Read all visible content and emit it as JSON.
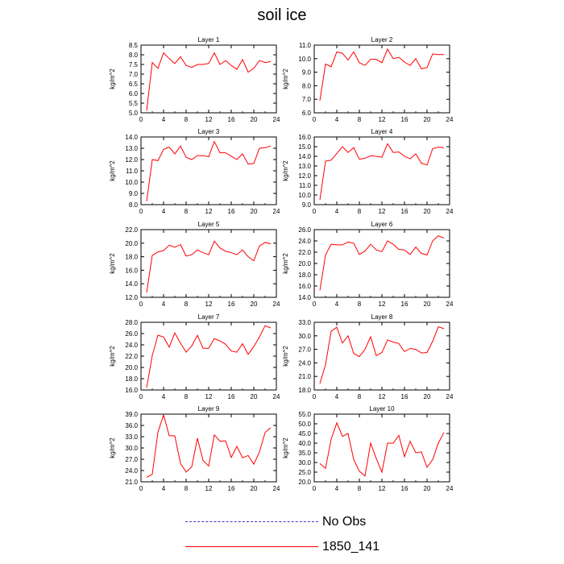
{
  "title": "soil ice",
  "legend": [
    {
      "label": "No Obs",
      "color": "#3a3acc",
      "dash": true
    },
    {
      "label": "1850_141",
      "color": "#ff0000",
      "dash": false
    }
  ],
  "chart_data": [
    {
      "type": "line",
      "title": "Layer 1",
      "ylabel": "kg/m^2",
      "xlim": [
        0,
        24
      ],
      "ylim": [
        5.0,
        8.5
      ],
      "xticks": [
        0,
        4,
        8,
        12,
        16,
        20,
        24
      ],
      "yticks": [
        5.0,
        5.5,
        6.0,
        6.5,
        7.0,
        7.5,
        8.0,
        8.5
      ],
      "series": [
        {
          "color": "#ff0000",
          "x": [
            1,
            2,
            3,
            4,
            5,
            6,
            7,
            8,
            9,
            10,
            11,
            12,
            13,
            14,
            15,
            16,
            17,
            18,
            19,
            20,
            21,
            22,
            23
          ],
          "values": [
            5.1,
            7.6,
            7.3,
            8.1,
            7.8,
            7.55,
            7.9,
            7.45,
            7.35,
            7.5,
            7.5,
            7.55,
            8.1,
            7.5,
            7.7,
            7.45,
            7.25,
            7.75,
            7.1,
            7.3,
            7.7,
            7.6,
            7.65
          ]
        }
      ]
    },
    {
      "type": "line",
      "title": "Layer 2",
      "ylabel": "kg/m^2",
      "xlim": [
        0,
        24
      ],
      "ylim": [
        6.0,
        11.0
      ],
      "xticks": [
        0,
        4,
        8,
        12,
        16,
        20,
        24
      ],
      "yticks": [
        6.0,
        7.0,
        8.0,
        9.0,
        10.0,
        11.0
      ],
      "series": [
        {
          "color": "#ff0000",
          "x": [
            1,
            2,
            3,
            4,
            5,
            6,
            7,
            8,
            9,
            10,
            11,
            12,
            13,
            14,
            15,
            16,
            17,
            18,
            19,
            20,
            21,
            22,
            23
          ],
          "values": [
            6.9,
            9.6,
            9.4,
            10.5,
            10.4,
            9.9,
            10.5,
            9.7,
            9.5,
            9.95,
            9.95,
            9.7,
            10.7,
            10.0,
            10.1,
            9.75,
            9.5,
            10.0,
            9.25,
            9.35,
            10.35,
            10.3,
            10.3
          ]
        }
      ]
    },
    {
      "type": "line",
      "title": "Layer 3",
      "ylabel": "kg/m^2",
      "xlim": [
        0,
        24
      ],
      "ylim": [
        8.0,
        14.0
      ],
      "xticks": [
        0,
        4,
        8,
        12,
        16,
        20,
        24
      ],
      "yticks": [
        8.0,
        9.0,
        10.0,
        11.0,
        12.0,
        13.0,
        14.0
      ],
      "series": [
        {
          "color": "#ff0000",
          "x": [
            1,
            2,
            3,
            4,
            5,
            6,
            7,
            8,
            9,
            10,
            11,
            12,
            13,
            14,
            15,
            16,
            17,
            18,
            19,
            20,
            21,
            22,
            23
          ],
          "values": [
            8.3,
            12.0,
            11.9,
            12.9,
            13.1,
            12.5,
            13.2,
            12.2,
            12.0,
            12.35,
            12.35,
            12.25,
            13.6,
            12.6,
            12.6,
            12.3,
            12.0,
            12.5,
            11.6,
            11.65,
            13.0,
            13.05,
            13.2
          ]
        }
      ]
    },
    {
      "type": "line",
      "title": "Layer 4",
      "ylabel": "kg/m^2",
      "xlim": [
        0,
        24
      ],
      "ylim": [
        9.0,
        16.0
      ],
      "xticks": [
        0,
        4,
        8,
        12,
        16,
        20,
        24
      ],
      "yticks": [
        9.0,
        10.0,
        11.0,
        12.0,
        13.0,
        14.0,
        15.0,
        16.0
      ],
      "series": [
        {
          "color": "#ff0000",
          "x": [
            1,
            2,
            3,
            4,
            5,
            6,
            7,
            8,
            9,
            10,
            11,
            12,
            13,
            14,
            15,
            16,
            17,
            18,
            19,
            20,
            21,
            22,
            23
          ],
          "values": [
            9.5,
            13.5,
            13.6,
            14.3,
            15.0,
            14.4,
            14.9,
            13.7,
            13.8,
            14.05,
            14.0,
            13.9,
            15.3,
            14.4,
            14.45,
            14.0,
            13.75,
            14.25,
            13.3,
            13.1,
            14.8,
            14.95,
            14.9
          ]
        }
      ]
    },
    {
      "type": "line",
      "title": "Layer 5",
      "ylabel": "kg/m^2",
      "xlim": [
        0,
        24
      ],
      "ylim": [
        12.0,
        22.0
      ],
      "xticks": [
        0,
        4,
        8,
        12,
        16,
        20,
        24
      ],
      "yticks": [
        12.0,
        14.0,
        16.0,
        18.0,
        20.0,
        22.0
      ],
      "series": [
        {
          "color": "#ff0000",
          "x": [
            1,
            2,
            3,
            4,
            5,
            6,
            7,
            8,
            9,
            10,
            11,
            12,
            13,
            14,
            15,
            16,
            17,
            18,
            19,
            20,
            21,
            22,
            23
          ],
          "values": [
            12.7,
            18.2,
            18.7,
            18.9,
            19.7,
            19.4,
            19.8,
            18.1,
            18.3,
            19.0,
            18.6,
            18.3,
            20.3,
            19.3,
            18.8,
            18.6,
            18.3,
            19.0,
            18.0,
            17.4,
            19.6,
            20.1,
            19.9
          ]
        }
      ]
    },
    {
      "type": "line",
      "title": "Layer 6",
      "ylabel": "kg/m^2",
      "xlim": [
        0,
        24
      ],
      "ylim": [
        14.0,
        26.0
      ],
      "xticks": [
        0,
        4,
        8,
        12,
        16,
        20,
        24
      ],
      "yticks": [
        14.0,
        16.0,
        18.0,
        20.0,
        22.0,
        24.0,
        26.0
      ],
      "series": [
        {
          "color": "#ff0000",
          "x": [
            1,
            2,
            3,
            4,
            5,
            6,
            7,
            8,
            9,
            10,
            11,
            12,
            13,
            14,
            15,
            16,
            17,
            18,
            19,
            20,
            21,
            22,
            23
          ],
          "values": [
            15.2,
            21.5,
            23.4,
            23.3,
            23.3,
            23.8,
            23.6,
            21.6,
            22.2,
            23.4,
            22.4,
            22.1,
            24.0,
            23.4,
            22.5,
            22.4,
            21.6,
            22.9,
            21.8,
            21.5,
            24.0,
            24.9,
            24.5
          ]
        }
      ]
    },
    {
      "type": "line",
      "title": "Layer 7",
      "ylabel": "kg/m^2",
      "xlim": [
        0,
        24
      ],
      "ylim": [
        16.0,
        28.0
      ],
      "xticks": [
        0,
        4,
        8,
        12,
        16,
        20,
        24
      ],
      "yticks": [
        16.0,
        18.0,
        20.0,
        22.0,
        24.0,
        26.0,
        28.0
      ],
      "series": [
        {
          "color": "#ff0000",
          "x": [
            1,
            2,
            3,
            4,
            5,
            6,
            7,
            8,
            9,
            10,
            11,
            12,
            13,
            14,
            15,
            16,
            17,
            18,
            19,
            20,
            21,
            22,
            23
          ],
          "values": [
            16.4,
            22.1,
            25.7,
            25.4,
            23.6,
            26.1,
            24.3,
            22.7,
            23.8,
            25.7,
            23.4,
            23.4,
            25.1,
            24.7,
            24.1,
            22.9,
            22.7,
            24.2,
            22.3,
            23.7,
            25.4,
            27.4,
            27.0
          ]
        }
      ]
    },
    {
      "type": "line",
      "title": "Layer 8",
      "ylabel": "kg/m^2",
      "xlim": [
        0,
        24
      ],
      "ylim": [
        18.0,
        33.0
      ],
      "xticks": [
        0,
        4,
        8,
        12,
        16,
        20,
        24
      ],
      "yticks": [
        18.0,
        21.0,
        24.0,
        27.0,
        30.0,
        33.0
      ],
      "series": [
        {
          "color": "#ff0000",
          "x": [
            1,
            2,
            3,
            4,
            5,
            6,
            7,
            8,
            9,
            10,
            11,
            12,
            13,
            14,
            15,
            16,
            17,
            18,
            19,
            20,
            21,
            22,
            23
          ],
          "values": [
            19.4,
            23.6,
            31.0,
            31.9,
            28.4,
            30.0,
            26.1,
            25.4,
            27.0,
            29.8,
            25.6,
            26.3,
            29.1,
            28.6,
            28.3,
            26.5,
            27.2,
            27.0,
            26.2,
            26.3,
            28.8,
            32.0,
            31.6
          ]
        }
      ]
    },
    {
      "type": "line",
      "title": "Layer 9",
      "ylabel": "kg/m^2",
      "xlim": [
        0,
        24
      ],
      "ylim": [
        21.0,
        39.0
      ],
      "xticks": [
        0,
        4,
        8,
        12,
        16,
        20,
        24
      ],
      "yticks": [
        21.0,
        24.0,
        27.0,
        30.0,
        33.0,
        36.0,
        39.0
      ],
      "series": [
        {
          "color": "#ff0000",
          "x": [
            1,
            2,
            3,
            4,
            5,
            6,
            7,
            8,
            9,
            10,
            11,
            12,
            13,
            14,
            15,
            16,
            17,
            18,
            19,
            20,
            21,
            22,
            23
          ],
          "values": [
            22.2,
            23.0,
            34.2,
            38.8,
            33.3,
            33.2,
            25.9,
            23.6,
            25.0,
            32.6,
            26.7,
            25.2,
            33.5,
            31.8,
            31.9,
            27.5,
            30.4,
            27.4,
            28.0,
            25.7,
            28.9,
            34.1,
            35.4
          ]
        }
      ]
    },
    {
      "type": "line",
      "title": "Layer 10",
      "ylabel": "kg/m^2",
      "xlim": [
        0,
        24
      ],
      "ylim": [
        20.0,
        55.0
      ],
      "xticks": [
        0,
        4,
        8,
        12,
        16,
        20,
        24
      ],
      "yticks": [
        20.0,
        25.0,
        30.0,
        35.0,
        40.0,
        45.0,
        50.0,
        55.0
      ],
      "series": [
        {
          "color": "#ff0000",
          "x": [
            1,
            2,
            3,
            4,
            5,
            6,
            7,
            8,
            9,
            10,
            11,
            12,
            13,
            14,
            15,
            16,
            17,
            18,
            19,
            20,
            21,
            22,
            23
          ],
          "values": [
            29.5,
            27.0,
            42.0,
            50.5,
            43.5,
            45.0,
            31.5,
            25.5,
            23.0,
            40.0,
            32.0,
            25.0,
            40.0,
            40.0,
            44.0,
            33.0,
            41.0,
            35.0,
            35.5,
            27.5,
            31.5,
            40.0,
            45.5
          ]
        }
      ]
    }
  ]
}
